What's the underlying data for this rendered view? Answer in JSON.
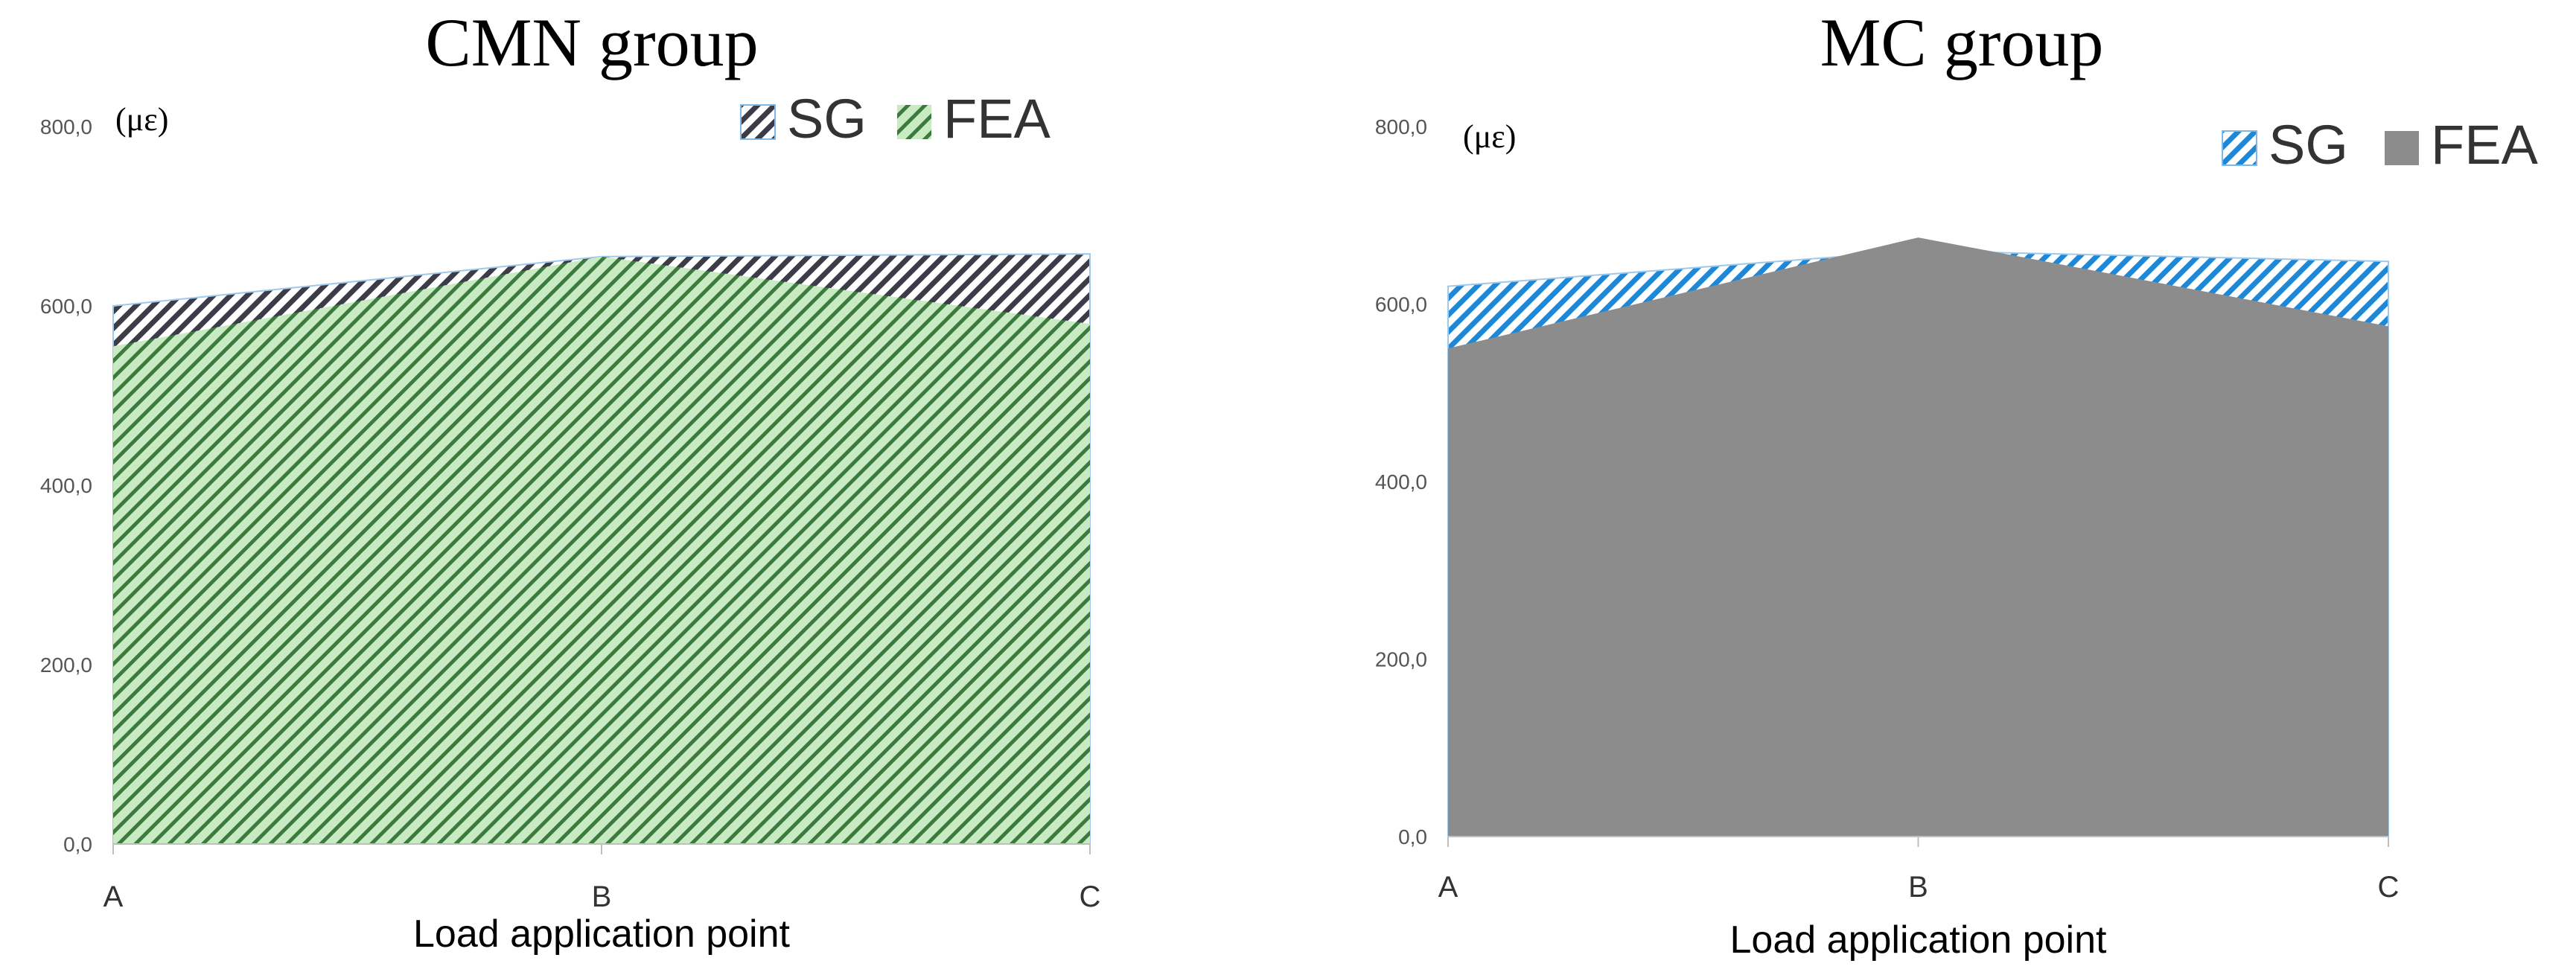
{
  "chart_data": [
    {
      "type": "area",
      "title": "CMN group",
      "unit_label": "(με)",
      "xlabel": "Load application point",
      "ylabel": "",
      "categories": [
        "A",
        "B",
        "C"
      ],
      "ylim": [
        0,
        800
      ],
      "yticks": [
        "0,0",
        "200,0",
        "400,0",
        "600,0",
        "800,0"
      ],
      "grid": false,
      "legend": "top-right",
      "series": [
        {
          "name": "SG",
          "values": [
            600,
            655,
            658
          ],
          "color": "#3c3c48",
          "style": "hatched"
        },
        {
          "name": "FEA",
          "values": [
            555,
            655,
            580
          ],
          "color": "#c8ebc4",
          "style": "solid-hatched",
          "hatch_color": "#3d7a3d"
        }
      ]
    },
    {
      "type": "area",
      "title": "MC group",
      "unit_label": "(με)",
      "xlabel": "Load application point",
      "ylabel": "",
      "categories": [
        "A",
        "B",
        "C"
      ],
      "ylim": [
        0,
        800
      ],
      "yticks": [
        "0,0",
        "200,0",
        "400,0",
        "600,0",
        "800,0"
      ],
      "grid": false,
      "legend": "top-right",
      "series": [
        {
          "name": "SG",
          "values": [
            620,
            660,
            648
          ],
          "color": "#1e88d8",
          "style": "hatched"
        },
        {
          "name": "FEA",
          "values": [
            550,
            675,
            575
          ],
          "color": "#8c8c8c",
          "style": "solid"
        }
      ]
    }
  ]
}
